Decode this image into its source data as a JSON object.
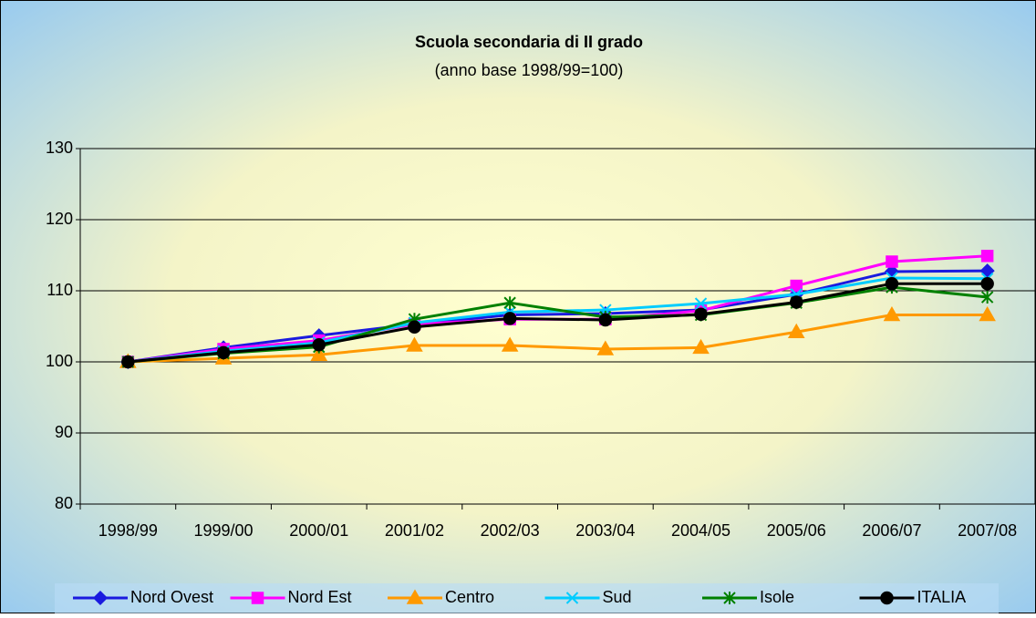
{
  "chart_data": {
    "type": "line",
    "title": "Scuola secondaria di II grado",
    "subtitle": "(anno base 1998/99=100)",
    "categories": [
      "1998/99",
      "1999/00",
      "2000/01",
      "2001/02",
      "2002/03",
      "2003/04",
      "2004/05",
      "2005/06",
      "2006/07",
      "2007/08"
    ],
    "series": [
      {
        "name": "Nord Ovest",
        "color": "#1a1adf",
        "marker": "diamond",
        "values": [
          100,
          102,
          103.7,
          105.3,
          106.6,
          106.8,
          107.3,
          109.5,
          112.7,
          112.8
        ]
      },
      {
        "name": "Nord Est",
        "color": "#ff00ff",
        "marker": "square",
        "values": [
          100,
          101.8,
          103,
          105.3,
          106,
          106,
          107.2,
          110.7,
          114.1,
          114.9
        ]
      },
      {
        "name": "Centro",
        "color": "#ff9900",
        "marker": "triangle",
        "values": [
          100,
          100.5,
          101,
          102.3,
          102.3,
          101.8,
          102,
          104.2,
          106.6,
          106.6
        ]
      },
      {
        "name": "Sud",
        "color": "#00ccff",
        "marker": "x",
        "values": [
          100,
          101.5,
          102.7,
          105.5,
          107,
          107.3,
          108.2,
          109.5,
          111.8,
          111.7
        ]
      },
      {
        "name": "Isole",
        "color": "#008000",
        "marker": "star",
        "values": [
          100,
          101.2,
          102.1,
          106,
          108.3,
          106.3,
          106.6,
          108.3,
          110.5,
          109.1
        ]
      },
      {
        "name": "ITALIA",
        "color": "#000000",
        "marker": "circle",
        "values": [
          100,
          101.3,
          102.4,
          104.9,
          106.1,
          105.9,
          106.7,
          108.4,
          111,
          111
        ]
      }
    ],
    "ylim": [
      80,
      130
    ],
    "yticks": [
      80,
      90,
      100,
      110,
      120,
      130
    ],
    "grid": true,
    "legend": "bottom"
  }
}
